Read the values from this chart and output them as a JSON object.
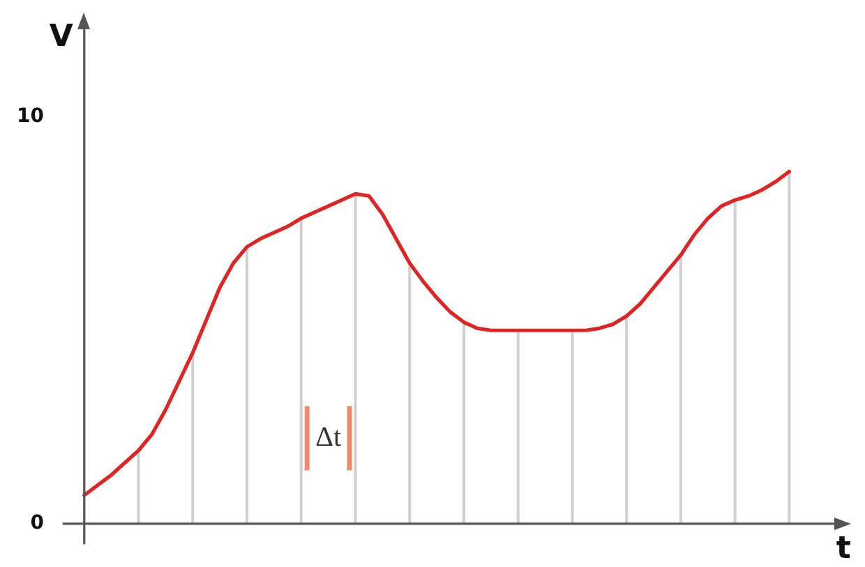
{
  "chart_data": {
    "type": "line",
    "xlabel": "t",
    "ylabel": "V",
    "categories": [
      null,
      null,
      null,
      null,
      null,
      null,
      null,
      null,
      null,
      null,
      null,
      null,
      null,
      null,
      null,
      null,
      null,
      null,
      null,
      null,
      null,
      null,
      null,
      null,
      null,
      null,
      null,
      null,
      null,
      null,
      null,
      null,
      null,
      null,
      null,
      null,
      null,
      null,
      null,
      null,
      null,
      null,
      null,
      null,
      null,
      null,
      null,
      null,
      null,
      null,
      null,
      null,
      null
    ],
    "series": [
      {
        "color": "#e02424",
        "values": [
          0.7,
          0.95,
          1.2,
          1.5,
          1.8,
          2.2,
          2.8,
          3.5,
          4.2,
          5.0,
          5.8,
          6.4,
          6.8,
          7.0,
          7.15,
          7.3,
          7.5,
          7.65,
          7.8,
          7.95,
          8.1,
          8.05,
          7.6,
          7.0,
          6.4,
          5.95,
          5.55,
          5.2,
          4.95,
          4.8,
          4.75,
          4.75,
          4.75,
          4.75,
          4.75,
          4.75,
          4.75,
          4.75,
          4.8,
          4.9,
          5.1,
          5.4,
          5.8,
          6.2,
          6.6,
          7.1,
          7.5,
          7.8,
          7.95,
          8.05,
          8.2,
          8.4,
          8.65
        ]
      },
      {
        "type": "bar",
        "color": "#cfcfcf",
        "values": [
          null,
          null,
          null,
          null,
          1.8,
          null,
          null,
          null,
          4.2,
          null,
          null,
          null,
          6.8,
          null,
          null,
          null,
          7.5,
          null,
          null,
          null,
          8.1,
          null,
          null,
          null,
          6.4,
          null,
          null,
          null,
          4.95,
          null,
          null,
          null,
          4.75,
          null,
          null,
          null,
          4.75,
          null,
          null,
          null,
          5.1,
          null,
          null,
          null,
          6.6,
          null,
          null,
          null,
          7.95,
          null,
          null,
          null,
          8.65
        ]
      }
    ],
    "ylim": [
      -0.5,
      12.3
    ],
    "yticks": [
      0,
      10
    ],
    "tick_labels": "y",
    "marker": "none",
    "line_style": "solid",
    "legend": false,
    "annotations": [
      "Δt"
    ]
  }
}
